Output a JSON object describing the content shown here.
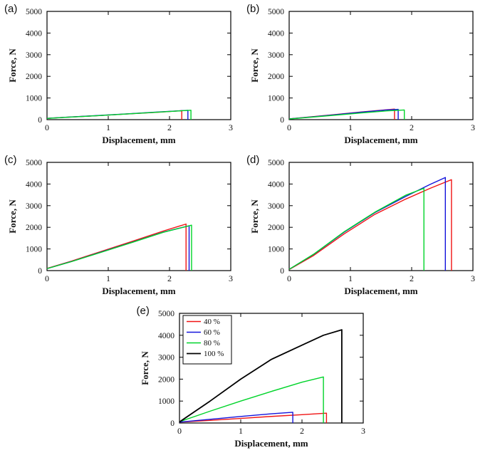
{
  "figure": {
    "background": "#ffffff",
    "axis_color": "#000000",
    "series_colors": {
      "red": "#f01414",
      "blue": "#1414dc",
      "green": "#00d42a",
      "black": "#000000"
    }
  },
  "chart_data": [
    {
      "id": "a",
      "panel_label": "(a)",
      "type": "line",
      "xlabel": "Displacement, mm",
      "ylabel": "Force, N",
      "xlim": [
        0,
        3
      ],
      "ylim": [
        0,
        5000
      ],
      "xticks": [
        0,
        1,
        2,
        3
      ],
      "yticks": [
        0,
        1000,
        2000,
        3000,
        4000,
        5000
      ],
      "grid": false,
      "series": [
        {
          "color": "#f01414",
          "x": [
            0,
            0.3,
            0.8,
            1.3,
            1.8,
            2.2,
            2.2
          ],
          "y": [
            60,
            110,
            180,
            260,
            340,
            415,
            0
          ]
        },
        {
          "color": "#1414dc",
          "x": [
            0,
            0.3,
            0.8,
            1.3,
            1.8,
            2.3,
            2.3
          ],
          "y": [
            60,
            110,
            185,
            265,
            350,
            430,
            0
          ]
        },
        {
          "color": "#00d42a",
          "x": [
            0,
            0.3,
            0.8,
            1.3,
            1.8,
            2.35,
            2.35
          ],
          "y": [
            55,
            105,
            180,
            260,
            345,
            435,
            0
          ]
        }
      ]
    },
    {
      "id": "b",
      "panel_label": "(b)",
      "type": "line",
      "xlabel": "Displacement, mm",
      "ylabel": "Force, N",
      "xlim": [
        0,
        3
      ],
      "ylim": [
        0,
        5000
      ],
      "xticks": [
        0,
        1,
        2,
        3
      ],
      "yticks": [
        0,
        1000,
        2000,
        3000,
        4000,
        5000
      ],
      "grid": false,
      "series": [
        {
          "color": "#f01414",
          "x": [
            0,
            0.4,
            0.8,
            1.2,
            1.6,
            1.72,
            1.72
          ],
          "y": [
            35,
            140,
            250,
            360,
            460,
            485,
            0
          ]
        },
        {
          "color": "#1414dc",
          "x": [
            0,
            0.4,
            0.8,
            1.2,
            1.6,
            1.78,
            1.78
          ],
          "y": [
            35,
            135,
            240,
            350,
            450,
            475,
            0
          ]
        },
        {
          "color": "#00d42a",
          "x": [
            0,
            0.4,
            0.8,
            1.2,
            1.6,
            1.88,
            1.88
          ],
          "y": [
            30,
            120,
            215,
            315,
            405,
            445,
            0
          ]
        }
      ]
    },
    {
      "id": "c",
      "panel_label": "(c)",
      "type": "line",
      "xlabel": "Displacement, mm",
      "ylabel": "Force, N",
      "xlim": [
        0,
        3
      ],
      "ylim": [
        0,
        5000
      ],
      "xticks": [
        0,
        1,
        2,
        3
      ],
      "yticks": [
        0,
        1000,
        2000,
        3000,
        4000,
        5000
      ],
      "grid": false,
      "series": [
        {
          "color": "#f01414",
          "x": [
            0,
            0.4,
            0.9,
            1.4,
            1.9,
            2.27,
            2.27
          ],
          "y": [
            100,
            440,
            900,
            1360,
            1830,
            2150,
            0
          ]
        },
        {
          "color": "#1414dc",
          "x": [
            0,
            0.4,
            0.9,
            1.4,
            1.9,
            2.32,
            2.32
          ],
          "y": [
            90,
            420,
            870,
            1320,
            1780,
            2070,
            0
          ]
        },
        {
          "color": "#00d42a",
          "x": [
            0,
            0.4,
            0.9,
            1.4,
            1.9,
            2.36,
            2.36
          ],
          "y": [
            90,
            415,
            860,
            1310,
            1770,
            2100,
            0
          ]
        }
      ]
    },
    {
      "id": "d",
      "panel_label": "(d)",
      "type": "line",
      "xlabel": "Displacement, mm",
      "ylabel": "Force, N",
      "xlim": [
        0,
        3
      ],
      "ylim": [
        0,
        5000
      ],
      "xticks": [
        0,
        1,
        2,
        3
      ],
      "yticks": [
        0,
        1000,
        2000,
        3000,
        4000,
        5000
      ],
      "grid": false,
      "series": [
        {
          "color": "#f01414",
          "x": [
            0,
            0.4,
            0.9,
            1.4,
            1.9,
            2.3,
            2.65,
            2.65
          ],
          "y": [
            50,
            700,
            1700,
            2600,
            3300,
            3800,
            4200,
            0
          ]
        },
        {
          "color": "#1414dc",
          "x": [
            0,
            0.4,
            0.9,
            1.4,
            1.9,
            2.3,
            2.55,
            2.55
          ],
          "y": [
            60,
            750,
            1780,
            2680,
            3420,
            3980,
            4300,
            0
          ]
        },
        {
          "color": "#00d42a",
          "x": [
            0,
            0.4,
            0.9,
            1.4,
            1.9,
            2.2,
            2.2
          ],
          "y": [
            60,
            760,
            1800,
            2700,
            3480,
            3800,
            0
          ]
        }
      ]
    },
    {
      "id": "e",
      "panel_label": "(e)",
      "type": "line",
      "xlabel": "Displacement, mm",
      "ylabel": "Force, N",
      "xlim": [
        0,
        3
      ],
      "ylim": [
        0,
        5000
      ],
      "xticks": [
        0,
        1,
        2,
        3
      ],
      "yticks": [
        0,
        1000,
        2000,
        3000,
        4000,
        5000
      ],
      "grid": false,
      "legend": {
        "position": "top-left"
      },
      "series": [
        {
          "name": "40 %",
          "color": "#f01414",
          "x": [
            0,
            0.5,
            1.0,
            1.5,
            2.0,
            2.4,
            2.4
          ],
          "y": [
            40,
            120,
            210,
            300,
            380,
            450,
            0
          ]
        },
        {
          "name": "60 %",
          "color": "#1414dc",
          "x": [
            0,
            0.5,
            1.0,
            1.5,
            1.85,
            1.85
          ],
          "y": [
            40,
            170,
            300,
            420,
            490,
            0
          ]
        },
        {
          "name": "80 %",
          "color": "#00d42a",
          "x": [
            0,
            0.5,
            1.0,
            1.5,
            2.0,
            2.35,
            2.35
          ],
          "y": [
            60,
            540,
            1000,
            1440,
            1860,
            2100,
            0
          ]
        },
        {
          "name": "100 %",
          "color": "#000000",
          "width": 1.8,
          "x": [
            0,
            0.5,
            1.0,
            1.5,
            2.0,
            2.35,
            2.65,
            2.65
          ],
          "y": [
            50,
            1000,
            2000,
            2900,
            3550,
            4000,
            4250,
            0
          ]
        }
      ]
    }
  ]
}
